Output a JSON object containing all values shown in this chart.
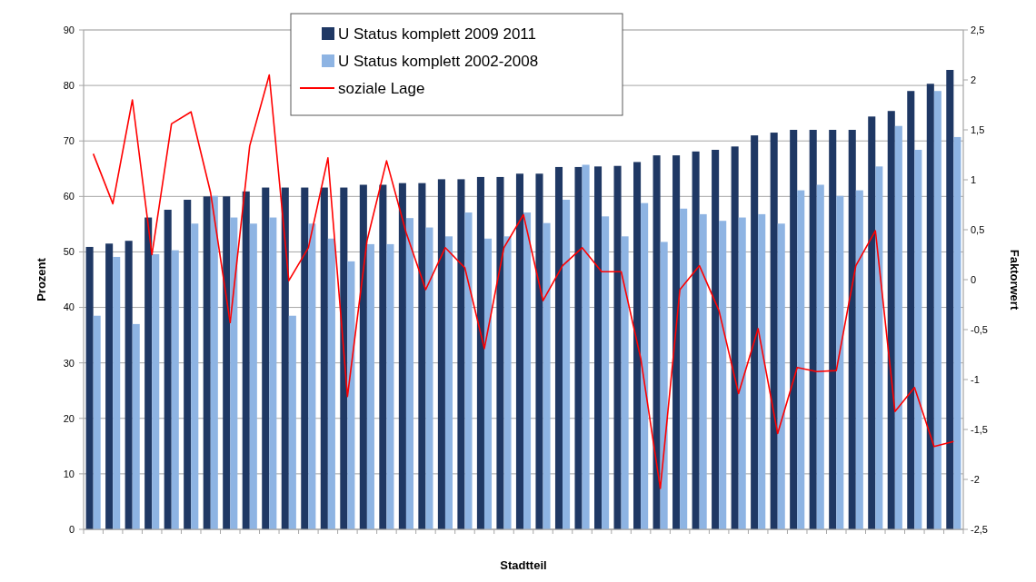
{
  "chart_data": {
    "type": "bar",
    "xlabel": "Stadtteil",
    "ylabel": "Prozent",
    "y2label": "Faktorwert",
    "categories": [
      null,
      null,
      null,
      null,
      null,
      null,
      null,
      null,
      null,
      null,
      null,
      null,
      null,
      null,
      null,
      null,
      null,
      null,
      null,
      null,
      null,
      null,
      null,
      null,
      null,
      null,
      null,
      null,
      null,
      null,
      null,
      null,
      null,
      null,
      null,
      null,
      null,
      null,
      null,
      null,
      null,
      null,
      null,
      null,
      null
    ],
    "series": [
      {
        "name": "U Status komplett 2009 2011",
        "color": "#1f3864",
        "values": [
          50.9,
          51.5,
          52,
          56.2,
          57.6,
          59.4,
          60,
          60,
          60.9,
          61.6,
          61.6,
          61.6,
          61.6,
          61.6,
          62.1,
          62.1,
          62.4,
          62.4,
          63.1,
          63.1,
          63.5,
          63.5,
          64.1,
          64.1,
          65.3,
          65.3,
          65.4,
          65.5,
          66.2,
          67.4,
          67.4,
          68.1,
          68.4,
          69,
          71,
          71.5,
          72,
          72,
          72,
          72,
          74.4,
          75.4,
          79,
          80.3,
          82.8
        ]
      },
      {
        "name": "U Status komplett 2002-2008",
        "color": "#8eb4e3",
        "values": [
          38.5,
          49.1,
          37,
          49.6,
          50.3,
          55.1,
          60.1,
          56.2,
          55.1,
          56.2,
          38.5,
          55.1,
          52.4,
          48.3,
          51.4,
          51.4,
          56.1,
          54.4,
          52.8,
          57.1,
          52.4,
          52.8,
          57.1,
          55.2,
          59.4,
          65.7,
          56.4,
          52.8,
          58.8,
          51.8,
          57.8,
          56.8,
          55.6,
          56.2,
          56.8,
          55.1,
          61.1,
          62.1,
          60.1,
          61.1,
          65.4,
          72.7,
          68.4,
          79,
          70.7
        ]
      },
      {
        "name": "soziale Lage",
        "type": "line",
        "axis": "y2",
        "color": "#ff0000",
        "values": [
          1.26,
          0.76,
          1.8,
          0.25,
          1.56,
          1.68,
          0.87,
          -0.43,
          1.34,
          2.05,
          -0.01,
          0.32,
          1.22,
          -1.17,
          0.39,
          1.19,
          0.47,
          -0.1,
          0.32,
          0.12,
          -0.69,
          0.32,
          0.65,
          -0.21,
          0.14,
          0.32,
          0.08,
          0.08,
          -0.79,
          -2.09,
          -0.1,
          0.14,
          -0.31,
          -1.14,
          -0.49,
          -1.54,
          -0.88,
          -0.92,
          -0.91,
          0.14,
          0.49,
          -1.32,
          -1.08,
          -1.67,
          -1.62
        ]
      }
    ],
    "ylim": [
      0,
      90
    ],
    "yticks": [
      0,
      10,
      20,
      30,
      40,
      50,
      60,
      70,
      80,
      90
    ],
    "y2lim": [
      -2.5,
      2.5
    ],
    "y2ticks": [
      {
        "value": -2.5,
        "label": "-2,5"
      },
      -2,
      {
        "value": -1.5,
        "label": "-1,5"
      },
      -1,
      {
        "value": -0.5,
        "label": "-0,5"
      },
      0,
      {
        "value": 0.5,
        "label": "0,5"
      },
      1,
      {
        "value": 1.5,
        "label": "1,5"
      },
      2,
      {
        "value": 2.5,
        "label": "2,5"
      }
    ],
    "grid": "y",
    "legend": "top",
    "marker": "none",
    "line_style": "solid"
  }
}
